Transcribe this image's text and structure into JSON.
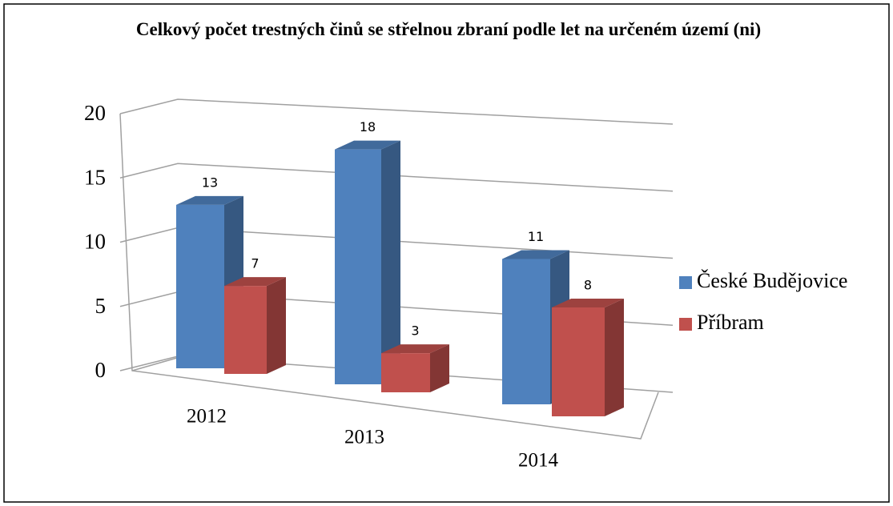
{
  "chart_data": {
    "type": "bar3d",
    "title": "Celkový počet trestných činů se střelnou zbraní podle let na určeném území (ni)",
    "categories": [
      "2012",
      "2013",
      "2014"
    ],
    "series": [
      {
        "name": "České Budějovice",
        "color": "#4f81bd",
        "values": [
          13,
          18,
          11
        ]
      },
      {
        "name": "Příbram",
        "color": "#c0504d",
        "values": [
          7,
          3,
          8
        ]
      }
    ],
    "ylim": [
      0,
      20
    ],
    "yticks": [
      0,
      5,
      10,
      15,
      20
    ],
    "grid": true,
    "legend": "right"
  }
}
